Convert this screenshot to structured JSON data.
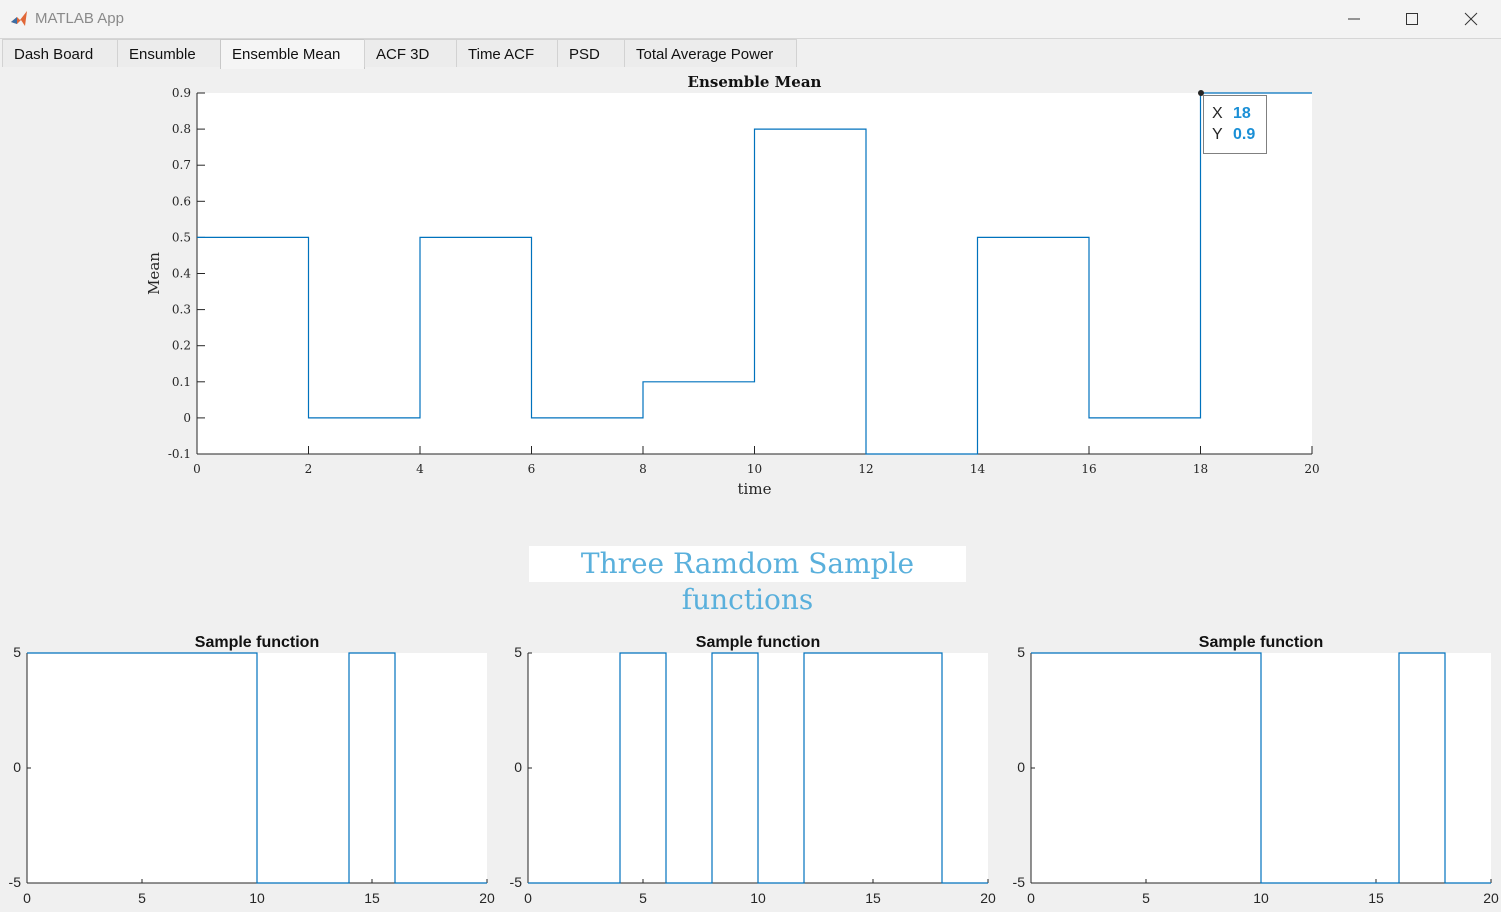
{
  "window": {
    "title": "MATLAB App",
    "controls": [
      "minimize-icon",
      "maximize-icon",
      "close-icon"
    ]
  },
  "tabs": [
    {
      "label": "Dash Board",
      "active": false
    },
    {
      "label": "Ensumble",
      "active": false
    },
    {
      "label": "Ensemble Mean",
      "active": true
    },
    {
      "label": "ACF 3D",
      "active": false
    },
    {
      "label": "Time ACF",
      "active": false
    },
    {
      "label": "PSD",
      "active": false
    },
    {
      "label": "Total Average Power",
      "active": false
    }
  ],
  "section_heading": "Three Ramdom Sample functions",
  "datatip": {
    "x_label": "X",
    "x_value": "18",
    "y_label": "Y",
    "y_value": "0.9"
  },
  "colors": {
    "line": "#0072bd",
    "heading": "#5ab0dc",
    "datatip_value": "#1a8fd6"
  },
  "chart_data": [
    {
      "type": "line",
      "title": "Ensemble Mean",
      "xlabel": "time",
      "ylabel": "Mean",
      "xlim": [
        0,
        20
      ],
      "ylim": [
        -0.1,
        0.9
      ],
      "xticks": [
        "0",
        "2",
        "4",
        "6",
        "8",
        "10",
        "12",
        "14",
        "16",
        "18",
        "20"
      ],
      "yticks": [
        "-0.1",
        "0",
        "0.1",
        "0.2",
        "0.3",
        "0.4",
        "0.5",
        "0.6",
        "0.7",
        "0.8",
        "0.9"
      ],
      "step": true,
      "x": [
        0,
        2,
        4,
        6,
        8,
        10,
        12,
        14,
        16,
        18,
        20
      ],
      "y": [
        0.5,
        0,
        0.5,
        0,
        0.1,
        0.8,
        -0.1,
        0.5,
        0,
        0.9,
        0.9
      ]
    },
    {
      "type": "line",
      "title": "Sample function",
      "xlim": [
        0,
        20
      ],
      "ylim": [
        -5,
        5
      ],
      "xticks": [
        "0",
        "5",
        "10",
        "15",
        "20"
      ],
      "yticks": [
        "-5",
        "0",
        "5"
      ],
      "step": true,
      "x": [
        0,
        2,
        4,
        6,
        8,
        10,
        12,
        14,
        16,
        18,
        20
      ],
      "y": [
        5,
        5,
        5,
        5,
        5,
        -5,
        -5,
        5,
        -5,
        -5,
        -5
      ]
    },
    {
      "type": "line",
      "title": "Sample function",
      "xlim": [
        0,
        20
      ],
      "ylim": [
        -5,
        5
      ],
      "xticks": [
        "0",
        "5",
        "10",
        "15",
        "20"
      ],
      "yticks": [
        "-5",
        "0",
        "5"
      ],
      "step": true,
      "x": [
        0,
        2,
        4,
        6,
        8,
        10,
        12,
        14,
        16,
        18,
        20
      ],
      "y": [
        -5,
        -5,
        5,
        -5,
        5,
        -5,
        5,
        5,
        5,
        -5,
        -5
      ]
    },
    {
      "type": "line",
      "title": "Sample function",
      "xlim": [
        0,
        20
      ],
      "ylim": [
        -5,
        5
      ],
      "xticks": [
        "0",
        "5",
        "10",
        "15",
        "20"
      ],
      "yticks": [
        "-5",
        "0",
        "5"
      ],
      "step": true,
      "x": [
        0,
        2,
        4,
        6,
        8,
        10,
        12,
        14,
        16,
        18,
        20
      ],
      "y": [
        5,
        5,
        5,
        5,
        5,
        -5,
        -5,
        -5,
        5,
        -5,
        -5
      ]
    }
  ]
}
